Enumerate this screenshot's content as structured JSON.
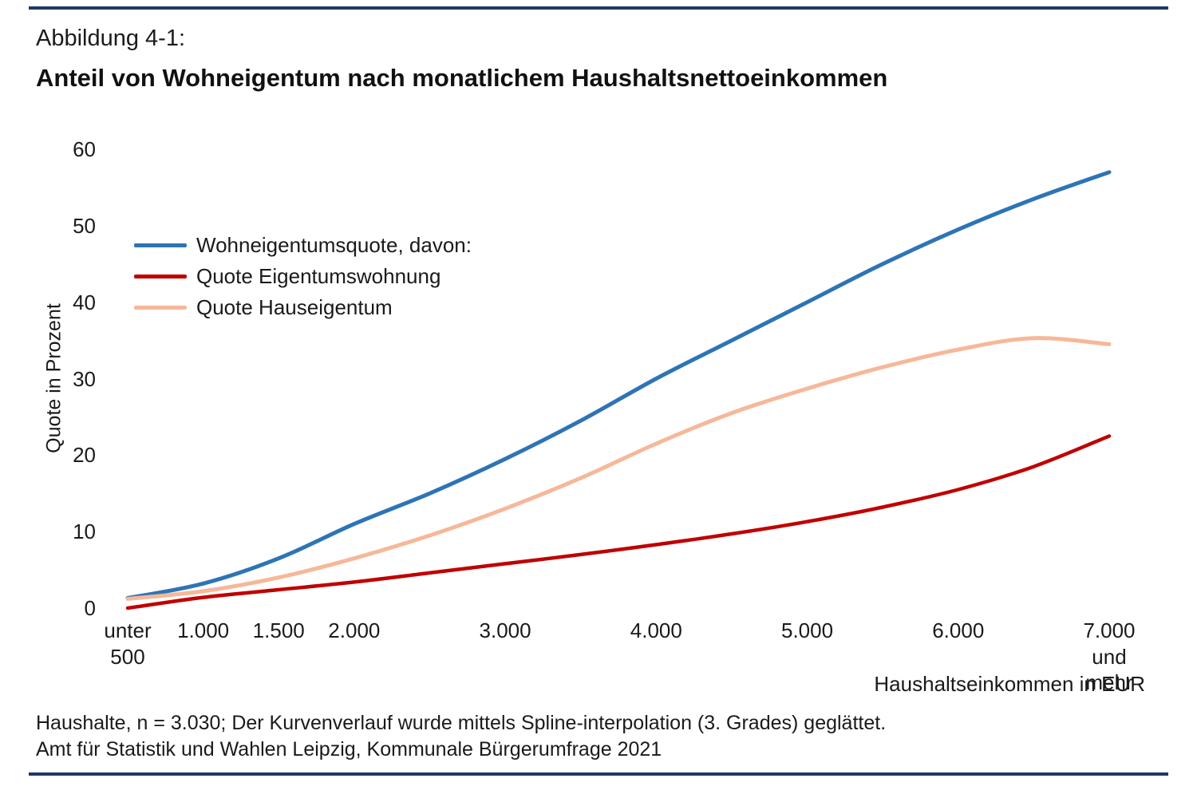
{
  "header": {
    "figure_label": "Abbildung 4-1:",
    "title": "Anteil von Wohneigentum nach monatlichem Haushaltsnettoeinkommen"
  },
  "footer": {
    "note1": "Haushalte, n = 3.030; Der Kurvenverlauf wurde mittels Spline-interpolation (3. Grades) geglättet.",
    "note2": "Amt für Statistik und Wahlen Leipzig, Kommunale Bürgerumfrage 2021"
  },
  "colors": {
    "rule": "#1f3864",
    "series_blue": "#2e74b5",
    "series_red": "#c00000",
    "series_peach": "#f6b899"
  },
  "chart_data": {
    "type": "line",
    "title": "Anteil von Wohneigentum nach monatlichem Haushaltsnettoeinkommen",
    "xlabel": "Haushaltseinkommen in EUR",
    "ylabel": "Quote in Prozent",
    "xlim": [
      500,
      7000
    ],
    "ylim": [
      0,
      60
    ],
    "grid": false,
    "legend_position": "upper-left-inside",
    "smoothing": "spline",
    "y_ticks": [
      0,
      10,
      20,
      30,
      40,
      50,
      60
    ],
    "x_ticks": [
      {
        "value": 500,
        "label": "unter\n500"
      },
      {
        "value": 1000,
        "label": "1.000"
      },
      {
        "value": 1500,
        "label": "1.500"
      },
      {
        "value": 2000,
        "label": "2.000"
      },
      {
        "value": 3000,
        "label": "3.000"
      },
      {
        "value": 4000,
        "label": "4.000"
      },
      {
        "value": 5000,
        "label": "5.000"
      },
      {
        "value": 6000,
        "label": "6.000"
      },
      {
        "value": 7000,
        "label": "7.000 und\nmehr"
      }
    ],
    "series": [
      {
        "name": "Wohneigentumsquote, davon:",
        "color": "#2e74b5",
        "width": 5,
        "points": [
          [
            500,
            1.3
          ],
          [
            1000,
            3.2
          ],
          [
            1500,
            6.5
          ],
          [
            2000,
            11
          ],
          [
            2500,
            15
          ],
          [
            3000,
            19.5
          ],
          [
            3500,
            24.5
          ],
          [
            4000,
            30
          ],
          [
            4500,
            35
          ],
          [
            5000,
            40
          ],
          [
            5500,
            45
          ],
          [
            6000,
            49.5
          ],
          [
            6500,
            53.5
          ],
          [
            7000,
            57
          ]
        ]
      },
      {
        "name": "Quote Eigentumswohnung",
        "color": "#c00000",
        "width": 4.5,
        "points": [
          [
            500,
            0
          ],
          [
            1000,
            1.4
          ],
          [
            1500,
            2.4
          ],
          [
            2000,
            3.4
          ],
          [
            2500,
            4.6
          ],
          [
            3000,
            5.8
          ],
          [
            3500,
            7
          ],
          [
            4000,
            8.3
          ],
          [
            4500,
            9.7
          ],
          [
            5000,
            11.3
          ],
          [
            5500,
            13.2
          ],
          [
            6000,
            15.5
          ],
          [
            6500,
            18.5
          ],
          [
            7000,
            22.5
          ]
        ]
      },
      {
        "name": "Quote Hauseigentum",
        "color": "#f6b899",
        "width": 5,
        "points": [
          [
            500,
            1.2
          ],
          [
            1000,
            2.2
          ],
          [
            1500,
            4.0
          ],
          [
            2000,
            6.5
          ],
          [
            2500,
            9.5
          ],
          [
            3000,
            13
          ],
          [
            3500,
            17
          ],
          [
            4000,
            21.5
          ],
          [
            4500,
            25.5
          ],
          [
            5000,
            28.7
          ],
          [
            5500,
            31.5
          ],
          [
            6000,
            33.8
          ],
          [
            6500,
            35.3
          ],
          [
            7000,
            34.5
          ]
        ]
      }
    ]
  }
}
